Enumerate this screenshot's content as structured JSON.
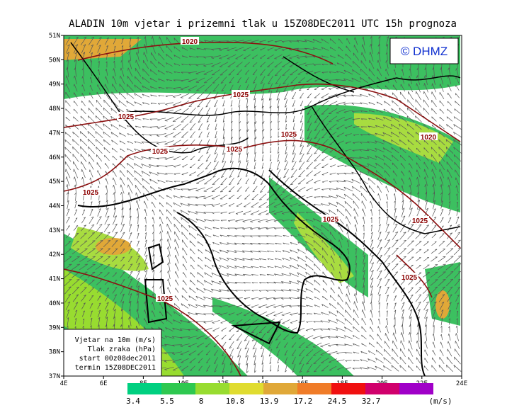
{
  "title": "ALADIN 10m vjetar i prizemni tlak u 15Z08DEC2011 UTC 15h prognoza",
  "copyright": "© DHMZ",
  "lat_labels": [
    "51N",
    "50N",
    "49N",
    "48N",
    "47N",
    "46N",
    "45N",
    "44N",
    "43N",
    "42N",
    "41N",
    "40N",
    "39N",
    "38N",
    "37N"
  ],
  "lon_labels": [
    "4E",
    "6E",
    "8E",
    "10E",
    "12E",
    "14E",
    "16E",
    "18E",
    "20E",
    "22E",
    "24E"
  ],
  "isobars": [
    "1020",
    "1025",
    "1025",
    "1025",
    "1025",
    "1025",
    "1020",
    "1025",
    "1025",
    "1025",
    "1025",
    "1025"
  ],
  "info": [
    "Vjetar na 10m (m/s)",
    "Tlak zraka (hPa)",
    "start 00z08dec2011",
    "termin 15Z08DEC2011"
  ],
  "colorbar": {
    "colors": [
      "#00d080",
      "#2ec850",
      "#98dc30",
      "#e0dc30",
      "#e0a838",
      "#f07c28",
      "#f01010",
      "#d0006c",
      "#a000c8"
    ],
    "labels": [
      "3.4",
      "5.5",
      "8",
      "10.8",
      "13.9",
      "17.2",
      "24.5",
      "32.7"
    ],
    "unit": "(m/s)"
  }
}
